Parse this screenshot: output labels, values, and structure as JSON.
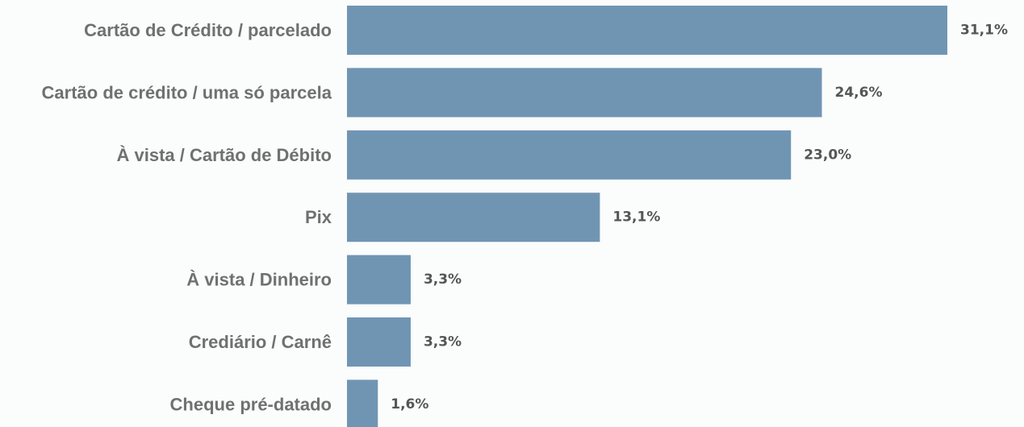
{
  "chart_data": {
    "type": "bar",
    "orientation": "horizontal",
    "categories": [
      "Cartão de Crédito / parcelado",
      "Cartão de crédito / uma só parcela",
      "À vista / Cartão de Débito",
      "Pix",
      "À vista / Dinheiro",
      "Crediário / Carnê",
      "Cheque pré-datado"
    ],
    "values": [
      31.1,
      24.6,
      23.0,
      13.1,
      3.3,
      3.3,
      1.6
    ],
    "value_labels": [
      "31,1%",
      "24,6%",
      "23,0%",
      "13,1%",
      "3,3%",
      "3,3%",
      "1,6%"
    ],
    "unit": "%",
    "xlim": [
      0,
      31.1
    ],
    "title": "",
    "xlabel": "",
    "ylabel": "",
    "grid": false,
    "legend": "none",
    "colors": {
      "bar": "#7095b3",
      "category_text": "#707070",
      "value_text": "#555555",
      "background": "#fbfcfc"
    }
  }
}
